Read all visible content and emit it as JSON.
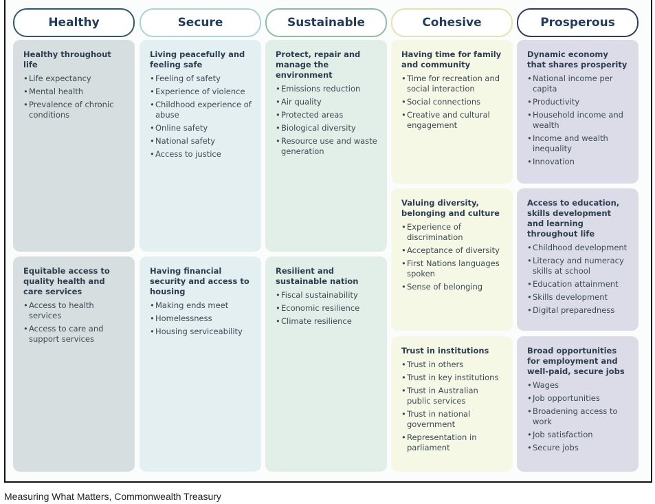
{
  "columns": [
    {
      "title": "Healthy",
      "border": "#2e5a6a",
      "bg": "#d7dedf",
      "cards": [
        {
          "title": "Healthy throughout life",
          "items": [
            "Life expectancy",
            "Mental health",
            "Prevalence of chronic conditions"
          ]
        },
        {
          "title": "Equitable access to quality health and care services",
          "items": [
            "Access to health services",
            "Access to care and support services"
          ]
        }
      ]
    },
    {
      "title": "Secure",
      "border": "#a9d3d6",
      "bg": "#e3eff1",
      "cards": [
        {
          "title": "Living peacefully and feeling safe",
          "items": [
            "Feeling of safety",
            "Experience of violence",
            "Childhood experience of abuse",
            "Online safety",
            "National safety",
            "Access to justice"
          ]
        },
        {
          "title": "Having financial security and access to housing",
          "items": [
            "Making ends meet",
            "Homelessness",
            "Housing serviceability"
          ]
        }
      ]
    },
    {
      "title": "Sustainable",
      "border": "#8fbba4",
      "bg": "#e2efe8",
      "cards": [
        {
          "title": "Protect, repair and manage the environment",
          "items": [
            "Emissions reduction",
            "Air quality",
            "Protected areas",
            "Biological diversity",
            "Resource use and waste generation"
          ]
        },
        {
          "title": "Resilient and sustainable nation",
          "items": [
            "Fiscal sustainability",
            "Economic resilience",
            "Climate resilience"
          ]
        }
      ]
    },
    {
      "title": "Cohesive",
      "border": "#dfe5ad",
      "bg": "#f5f8e5",
      "cards": [
        {
          "title": "Having time for family and community",
          "items": [
            "Time for recreation and social interaction",
            "Social connections",
            "Creative and cultural engagement"
          ]
        },
        {
          "title": "Valuing diversity, belonging and culture",
          "items": [
            "Experience of discrimination",
            "Acceptance of diversity",
            "First Nations languages spoken",
            "Sense of belonging"
          ]
        },
        {
          "title": "Trust in institutions",
          "items": [
            "Trust in others",
            "Trust in key institutions",
            "Trust in Australian public services",
            "Trust in national government",
            "Representation in parliament"
          ]
        }
      ]
    },
    {
      "title": "Prosperous",
      "border": "#2c3e5a",
      "bg": "#dcdce9",
      "cards": [
        {
          "title": "Dynamic economy that shares prosperity",
          "items": [
            "National income per capita",
            "Productivity",
            "Household income and wealth",
            "Income and wealth inequality",
            "Innovation"
          ]
        },
        {
          "title": "Access to education, skills development and learning throughout life",
          "items": [
            "Childhood development",
            "Literacy and numeracy skills at school",
            "Education attainment",
            "Skills development",
            "Digital preparedness"
          ]
        },
        {
          "title": "Broad opportunities for employment and well-paid, secure jobs",
          "items": [
            "Wages",
            "Job opportunities",
            "Broadening access to work",
            "Job satisfaction",
            "Secure jobs"
          ]
        }
      ]
    }
  ],
  "caption": "Measuring What Matters, Commonwealth Treasury"
}
